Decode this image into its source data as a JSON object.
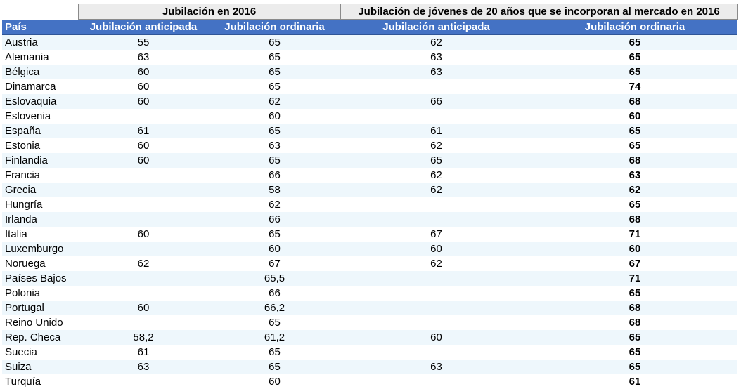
{
  "header": {
    "group1": "Jubilación en 2016",
    "group2": "Jubilación de jóvenes de 20 años que se incorporan al mercado en 2016",
    "col_pais": "País",
    "col_anticipada_1": "Jubilación anticipada",
    "col_ordinaria_1": "Jubilación ordinaria",
    "col_anticipada_2": "Jubilación anticipada",
    "col_ordinaria_2": "Jubilación ordinaria"
  },
  "rows": [
    {
      "pais": "Austria",
      "a2016": "55",
      "o2016": "65",
      "ajov": "62",
      "ojov": "65"
    },
    {
      "pais": "Alemania",
      "a2016": "63",
      "o2016": "65",
      "ajov": "63",
      "ojov": "65"
    },
    {
      "pais": "Bélgica",
      "a2016": "60",
      "o2016": "65",
      "ajov": "63",
      "ojov": "65"
    },
    {
      "pais": "Dinamarca",
      "a2016": "60",
      "o2016": "65",
      "ajov": "",
      "ojov": "74"
    },
    {
      "pais": "Eslovaquia",
      "a2016": "60",
      "o2016": "62",
      "ajov": "66",
      "ojov": "68"
    },
    {
      "pais": "Eslovenia",
      "a2016": "",
      "o2016": "60",
      "ajov": "",
      "ojov": "60"
    },
    {
      "pais": "España",
      "a2016": "61",
      "o2016": "65",
      "ajov": "61",
      "ojov": "65"
    },
    {
      "pais": "Estonia",
      "a2016": "60",
      "o2016": "63",
      "ajov": "62",
      "ojov": "65"
    },
    {
      "pais": "Finlandia",
      "a2016": "60",
      "o2016": "65",
      "ajov": "65",
      "ojov": "68"
    },
    {
      "pais": "Francia",
      "a2016": "",
      "o2016": "66",
      "ajov": "62",
      "ojov": "63"
    },
    {
      "pais": "Grecia",
      "a2016": "",
      "o2016": "58",
      "ajov": "62",
      "ojov": "62"
    },
    {
      "pais": "Hungría",
      "a2016": "",
      "o2016": "62",
      "ajov": "",
      "ojov": "65"
    },
    {
      "pais": "Irlanda",
      "a2016": "",
      "o2016": "66",
      "ajov": "",
      "ojov": "68"
    },
    {
      "pais": "Italia",
      "a2016": "60",
      "o2016": "65",
      "ajov": "67",
      "ojov": "71"
    },
    {
      "pais": "Luxemburgo",
      "a2016": "",
      "o2016": "60",
      "ajov": "60",
      "ojov": "60"
    },
    {
      "pais": "Noruega",
      "a2016": "62",
      "o2016": "67",
      "ajov": "62",
      "ojov": "67"
    },
    {
      "pais": "Países Bajos",
      "a2016": "",
      "o2016": "65,5",
      "ajov": "",
      "ojov": "71"
    },
    {
      "pais": "Polonia",
      "a2016": "",
      "o2016": "66",
      "ajov": "",
      "ojov": "65"
    },
    {
      "pais": "Portugal",
      "a2016": "60",
      "o2016": "66,2",
      "ajov": "",
      "ojov": "68"
    },
    {
      "pais": "Reino Unido",
      "a2016": "",
      "o2016": "65",
      "ajov": "",
      "ojov": "68"
    },
    {
      "pais": "Rep. Checa",
      "a2016": "58,2",
      "o2016": "61,2",
      "ajov": "60",
      "ojov": "65"
    },
    {
      "pais": "Suecia",
      "a2016": "61",
      "o2016": "65",
      "ajov": "",
      "ojov": "65"
    },
    {
      "pais": "Suiza",
      "a2016": "63",
      "o2016": "65",
      "ajov": "63",
      "ojov": "65"
    },
    {
      "pais": "Turquía",
      "a2016": "",
      "o2016": "60",
      "ajov": "",
      "ojov": "61"
    }
  ]
}
